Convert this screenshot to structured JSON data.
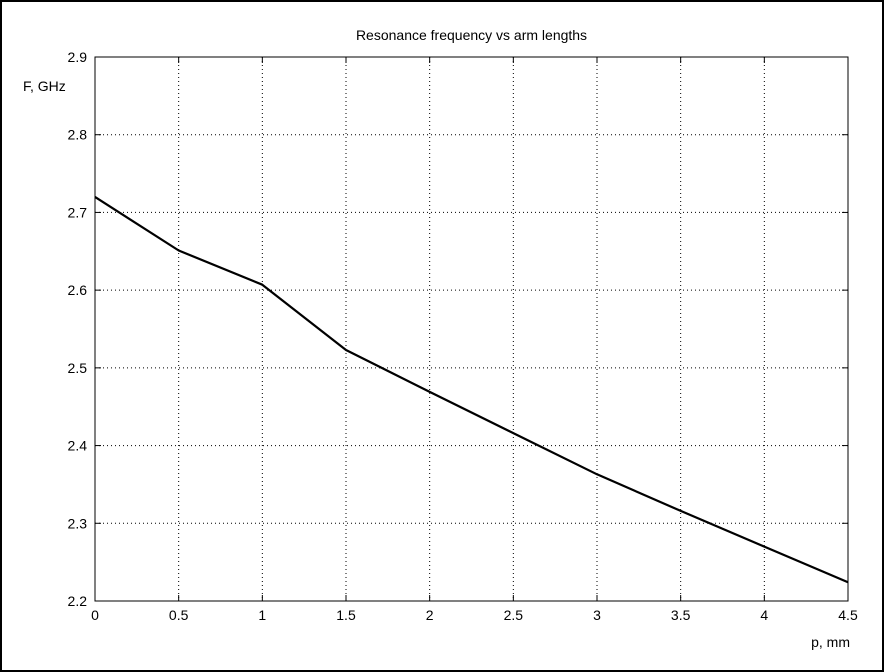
{
  "chart_data": {
    "type": "line",
    "title": "Resonance frequency vs arm lengths",
    "xlabel": "p, mm",
    "ylabel": "F, GHz",
    "xlim": [
      0,
      4.5
    ],
    "ylim": [
      2.2,
      2.9
    ],
    "x_ticks": [
      "0",
      "0.5",
      "1",
      "1.5",
      "2",
      "2.5",
      "3",
      "3.5",
      "4",
      "4.5"
    ],
    "y_ticks": [
      "2.2",
      "2.3",
      "2.4",
      "2.5",
      "2.6",
      "2.7",
      "2.8",
      "2.9"
    ],
    "grid": true,
    "series": [
      {
        "x": [
          0,
          0.5,
          1.0,
          1.5,
          2.0,
          2.5,
          3.0,
          3.5,
          4.0,
          4.5
        ],
        "y": [
          2.72,
          2.651,
          2.607,
          2.523,
          2.469,
          2.416,
          2.363,
          2.316,
          2.27,
          2.224
        ]
      }
    ],
    "line_color": "#000000"
  }
}
